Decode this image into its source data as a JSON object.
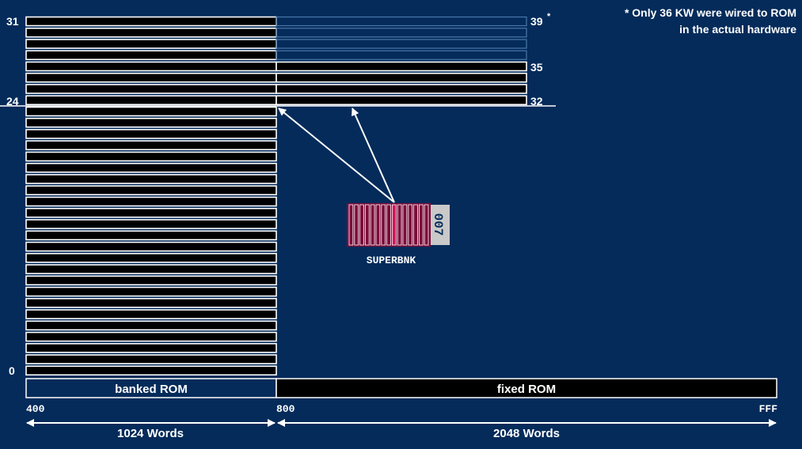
{
  "footnote": {
    "line1": "* Only 36 KW were wired to ROM",
    "line2": "in the actual hardware"
  },
  "bank_labels": {
    "top_left": "31",
    "mid_left": "24",
    "bottom_left": "0",
    "top_right": "39",
    "top_right_mark": "*",
    "mid_right": "35",
    "low_right": "32"
  },
  "register": {
    "name": "SUPERBNK",
    "value": "007",
    "fill_color": "#7c0b3a",
    "highlight_color": "#d4145a"
  },
  "regions": {
    "banked_label": "banked ROM",
    "fixed_label": "fixed ROM"
  },
  "addresses": {
    "start": "400",
    "middle": "800",
    "end": "FFF"
  },
  "spans": {
    "banked_words": "1024 Words",
    "fixed_words": "2048 Words"
  },
  "colors": {
    "background": "#042b5a",
    "bank_fill": "#000000",
    "bank_outline": "#ffffff",
    "faded_outline": "#4a78a8"
  }
}
